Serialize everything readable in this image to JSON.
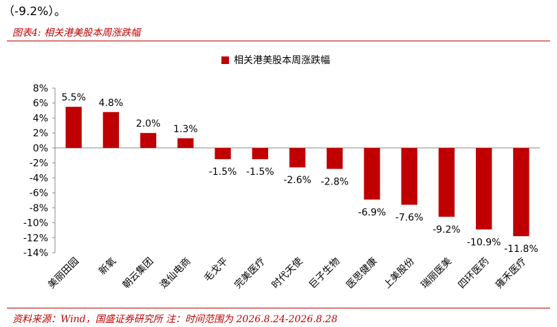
{
  "header": {
    "intro_text": "（-9.2%）。",
    "figure_title": "图表4:  相关港美股本周涨跌幅"
  },
  "footer": {
    "source": "资料来源：Wind，国盛证券研究所  注：时间范围为 2026.8.24-2026.8.28"
  },
  "colors": {
    "bar": "#c00000",
    "accent": "#c00000"
  },
  "chart_data": {
    "type": "bar",
    "title": "",
    "xlabel": "",
    "ylabel": "",
    "ylim": [
      -14,
      8
    ],
    "y_ticks": [
      "8%",
      "6%",
      "4%",
      "2%",
      "0%",
      "-2%",
      "-4%",
      "-6%",
      "-8%",
      "-10%",
      "-12%",
      "-14%"
    ],
    "y_tick_values": [
      8,
      6,
      4,
      2,
      0,
      -2,
      -4,
      -6,
      -8,
      -10,
      -12,
      -14
    ],
    "legend_position": "top-center",
    "grid": false,
    "categories": [
      "美丽田园",
      "新氧",
      "朝云集团",
      "逸仙电商",
      "毛戈平",
      "完美医疗",
      "时代天使",
      "巨子生物",
      "医思健康",
      "上美股份",
      "瑞丽医美",
      "四环医药",
      "雍禾医疗"
    ],
    "series": [
      {
        "name": "相关港美股本周涨跌幅",
        "values": [
          5.5,
          4.8,
          2.0,
          1.3,
          -1.5,
          -1.5,
          -2.6,
          -2.8,
          -6.9,
          -7.6,
          -9.2,
          -10.9,
          -11.8
        ],
        "labels": [
          "5.5%",
          "4.8%",
          "2.0%",
          "1.3%",
          "-1.5%",
          "-1.5%",
          "-2.6%",
          "-2.8%",
          "-6.9%",
          "-7.6%",
          "-9.2%",
          "-10.9%",
          "-11.8%"
        ]
      }
    ]
  }
}
